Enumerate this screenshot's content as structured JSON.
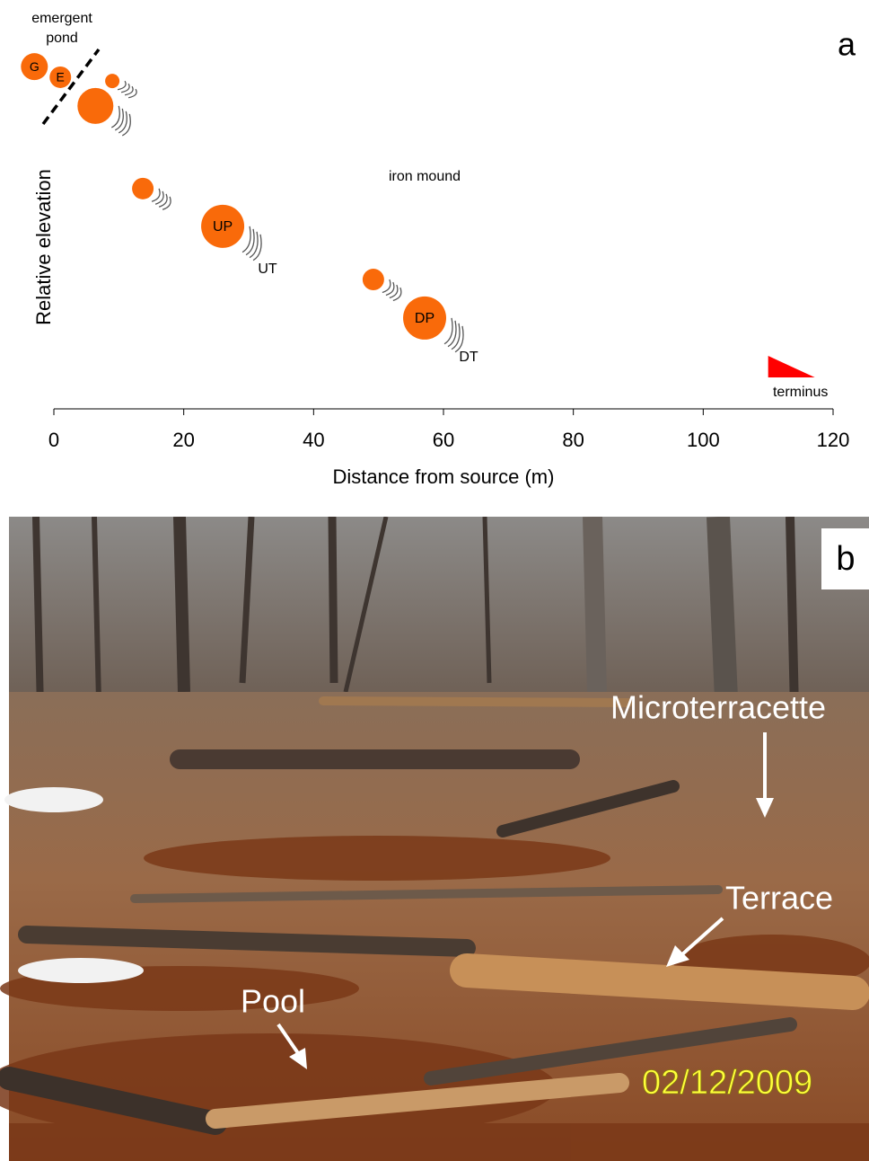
{
  "chart_data": {
    "type": "scatter",
    "panel_label": "a",
    "x": [
      -3.0,
      1.0,
      9.0,
      6.4,
      13.7,
      26.0,
      49.2,
      57.1
    ],
    "y": [
      0.871,
      0.843,
      0.833,
      0.767,
      0.548,
      0.448,
      0.307,
      0.205
    ],
    "point_labels": [
      "G",
      "E",
      null,
      null,
      null,
      "UP",
      null,
      "DP"
    ],
    "color": "#f96a0a",
    "xlim": [
      0,
      120
    ],
    "xticks": [
      0,
      20,
      40,
      60,
      80,
      100,
      120
    ],
    "ylim": [
      0,
      1
    ],
    "xlabel": "Distance from source (m)",
    "ylabel": "Relative elevation",
    "annotations": {
      "pond": "emergent pond",
      "mound": "iron mound",
      "upper_terrace": "UT",
      "downstream_terrace": "DT"
    },
    "terminus": {
      "label": "terminus",
      "x": 110,
      "color": "#ff0000"
    }
  },
  "photo": {
    "panel_label": "b",
    "labels": [
      "Microterracette",
      "Terrace",
      "Pool"
    ],
    "date_stamp": "02/12/2009"
  }
}
